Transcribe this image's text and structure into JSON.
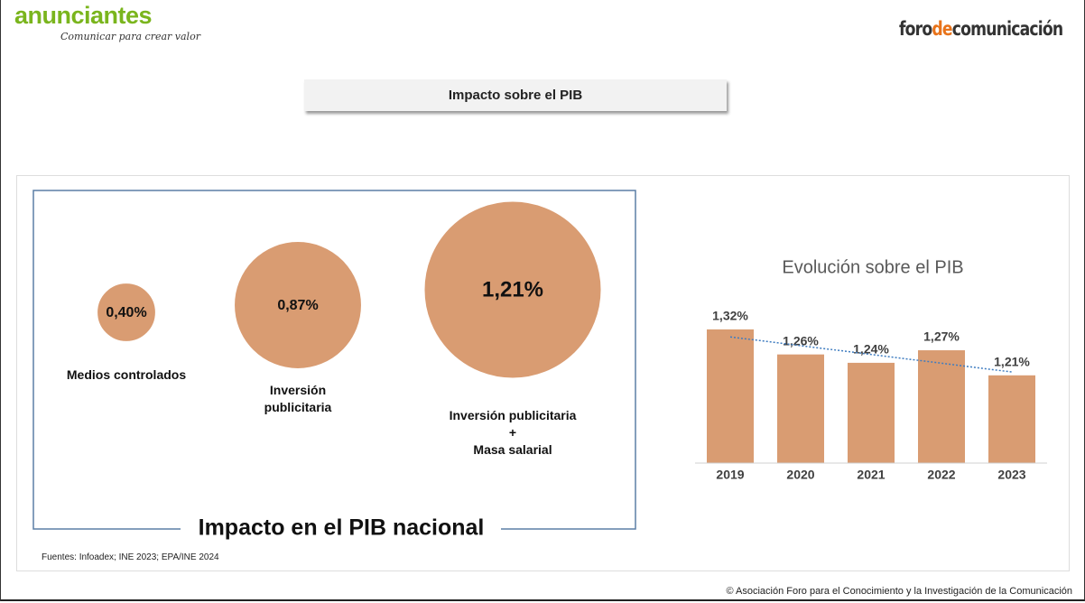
{
  "header": {
    "brand": "anunciantes",
    "tagline": "Comunicar para crear valor",
    "partner_logo": [
      "foro",
      "de",
      "comunicación"
    ],
    "title": "Impacto sobre el PIB"
  },
  "chart_data": [
    {
      "type": "bubble",
      "title": "Impacto en el PIB nacional",
      "categories": [
        "Medios controlados",
        "Inversión\npublicitaria",
        "Inversión publicitaria\n+\nMasa salarial"
      ],
      "values": [
        0.4,
        0.87,
        1.21
      ],
      "value_labels": [
        "0,40%",
        "0,87%",
        "1,21%"
      ],
      "color": "#d99c72"
    },
    {
      "type": "bar",
      "title": "Evolución sobre el PIB",
      "categories": [
        "2019",
        "2020",
        "2021",
        "2022",
        "2023"
      ],
      "values": [
        1.32,
        1.26,
        1.24,
        1.27,
        1.21
      ],
      "value_labels": [
        "1,32%",
        "1,26%",
        "1,24%",
        "1,27%",
        "1,21%"
      ],
      "color": "#d99c72",
      "ylim": [
        1.0,
        1.35
      ],
      "trendline": true,
      "trendline_color": "#3e7cc0"
    }
  ],
  "source": "Fuentes: Infoadex; INE 2023; EPA/INE 2024",
  "footer": "© Asociación Foro para el Conocimiento y la Investigación de la Comunicación"
}
